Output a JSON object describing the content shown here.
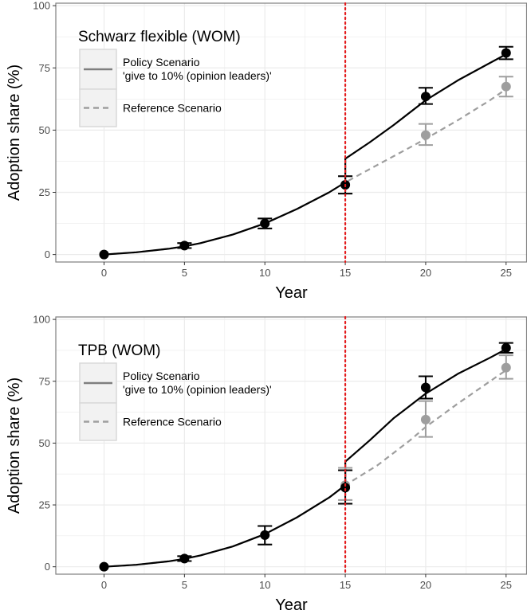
{
  "colors": {
    "policy": "#000000",
    "reference": "#9e9e9e",
    "policy_line": "#7f7f7f",
    "intervention": "#e41a1c",
    "grid": "#ebebeb",
    "panel_border": "#7f7f7f"
  },
  "chart_data": [
    {
      "type": "line",
      "title": "Schwarz flexible (WOM)",
      "xlabel": "Year",
      "ylabel": "Adoption share (%)",
      "xlim": [
        -3,
        26.3
      ],
      "ylim": [
        -3,
        101
      ],
      "x_ticks": [
        0,
        5,
        10,
        15,
        20,
        25
      ],
      "y_ticks": [
        0,
        25,
        50,
        75,
        100
      ],
      "grid": true,
      "legend_position": "top-left",
      "vline_x": 15,
      "legend": [
        {
          "series": "policy",
          "lines": [
            "Policy Scenario",
            "'give to 10% (opinion leaders)'"
          ],
          "style": "solid"
        },
        {
          "series": "reference",
          "lines": [
            "Reference Scenario"
          ],
          "style": "dashed"
        }
      ],
      "series": [
        {
          "key": "policy",
          "curve": [
            [
              0,
              0
            ],
            [
              2,
              0.9
            ],
            [
              4,
              2.3
            ],
            [
              5,
              3.3
            ],
            [
              6,
              4.6
            ],
            [
              8,
              8
            ],
            [
              10,
              12.5
            ],
            [
              12,
              18.3
            ],
            [
              14,
              25
            ],
            [
              15,
              29
            ],
            [
              15,
              38.5
            ],
            [
              16.5,
              45
            ],
            [
              18,
              52
            ],
            [
              20,
              62
            ],
            [
              22,
              70
            ],
            [
              24,
              77
            ],
            [
              25,
              80.5
            ]
          ],
          "points": [
            {
              "x": 0,
              "y": 0,
              "lo": 0,
              "hi": 0
            },
            {
              "x": 5,
              "y": 3.6,
              "lo": 2.6,
              "hi": 4.6
            },
            {
              "x": 10,
              "y": 12.5,
              "lo": 10.5,
              "hi": 14.5
            },
            {
              "x": 15,
              "y": 28,
              "lo": 24.5,
              "hi": 31.5
            },
            {
              "x": 20,
              "y": 63.5,
              "lo": 60.5,
              "hi": 67
            },
            {
              "x": 25,
              "y": 81,
              "lo": 78.5,
              "hi": 83.5
            }
          ]
        },
        {
          "key": "reference",
          "curve": [
            [
              0,
              0
            ],
            [
              2,
              0.9
            ],
            [
              4,
              2.3
            ],
            [
              5,
              3.3
            ],
            [
              6,
              4.6
            ],
            [
              8,
              8
            ],
            [
              10,
              12.5
            ],
            [
              12,
              18.3
            ],
            [
              14,
              25
            ],
            [
              15,
              29
            ],
            [
              17,
              36
            ],
            [
              19,
              43
            ],
            [
              20,
              46.5
            ],
            [
              22,
              54
            ],
            [
              24,
              62
            ],
            [
              25,
              66.5
            ]
          ],
          "points": [
            {
              "x": 0,
              "y": 0,
              "lo": 0,
              "hi": 0
            },
            {
              "x": 5,
              "y": 3.6,
              "lo": 2.6,
              "hi": 4.6
            },
            {
              "x": 10,
              "y": 12.5,
              "lo": 10.5,
              "hi": 14.5
            },
            {
              "x": 15,
              "y": 28,
              "lo": 24.5,
              "hi": 31.5
            },
            {
              "x": 20,
              "y": 48,
              "lo": 44,
              "hi": 52.5
            },
            {
              "x": 25,
              "y": 67.5,
              "lo": 63.5,
              "hi": 71.5
            }
          ]
        }
      ]
    },
    {
      "type": "line",
      "title": "TPB (WOM)",
      "xlabel": "Year",
      "ylabel": "Adoption share (%)",
      "xlim": [
        -3,
        26.3
      ],
      "ylim": [
        -3,
        101
      ],
      "x_ticks": [
        0,
        5,
        10,
        15,
        20,
        25
      ],
      "y_ticks": [
        0,
        25,
        50,
        75,
        100
      ],
      "grid": true,
      "legend_position": "top-left",
      "vline_x": 15,
      "legend": [
        {
          "series": "policy",
          "lines": [
            "Policy Scenario",
            "'give to 10% (opinion leaders)'"
          ],
          "style": "solid"
        },
        {
          "series": "reference",
          "lines": [
            "Reference Scenario"
          ],
          "style": "dashed"
        }
      ],
      "series": [
        {
          "key": "policy",
          "curve": [
            [
              0,
              0
            ],
            [
              2,
              0.8
            ],
            [
              4,
              2.2
            ],
            [
              5,
              3.2
            ],
            [
              6,
              4.6
            ],
            [
              8,
              8.2
            ],
            [
              10,
              13.2
            ],
            [
              12,
              20
            ],
            [
              14,
              28
            ],
            [
              15,
              33
            ],
            [
              15,
              42.5
            ],
            [
              16.5,
              51
            ],
            [
              18,
              60
            ],
            [
              20,
              70
            ],
            [
              22,
              78
            ],
            [
              24,
              84.5
            ],
            [
              25,
              88
            ]
          ],
          "points": [
            {
              "x": 0,
              "y": 0,
              "lo": 0,
              "hi": 0
            },
            {
              "x": 5,
              "y": 3.3,
              "lo": 2.3,
              "hi": 4.3
            },
            {
              "x": 10,
              "y": 12.8,
              "lo": 9,
              "hi": 16.5
            },
            {
              "x": 15,
              "y": 32,
              "lo": 25.5,
              "hi": 39
            },
            {
              "x": 20,
              "y": 72.5,
              "lo": 68,
              "hi": 77
            },
            {
              "x": 25,
              "y": 88.5,
              "lo": 86.5,
              "hi": 90.5
            }
          ]
        },
        {
          "key": "reference",
          "curve": [
            [
              0,
              0
            ],
            [
              2,
              0.8
            ],
            [
              4,
              2.2
            ],
            [
              5,
              3.2
            ],
            [
              6,
              4.6
            ],
            [
              8,
              8.2
            ],
            [
              10,
              13.2
            ],
            [
              12,
              20
            ],
            [
              14,
              28
            ],
            [
              15,
              33
            ],
            [
              17,
              41
            ],
            [
              19,
              51
            ],
            [
              20,
              56.5
            ],
            [
              22,
              66
            ],
            [
              24,
              75
            ],
            [
              25,
              79.5
            ]
          ],
          "points": [
            {
              "x": 0,
              "y": 0,
              "lo": 0,
              "hi": 0
            },
            {
              "x": 5,
              "y": 3.3,
              "lo": 2.3,
              "hi": 4.3
            },
            {
              "x": 10,
              "y": 12.8,
              "lo": 9,
              "hi": 16.5
            },
            {
              "x": 15,
              "y": 33,
              "lo": 27,
              "hi": 40
            },
            {
              "x": 20,
              "y": 59.5,
              "lo": 52.5,
              "hi": 67
            },
            {
              "x": 25,
              "y": 80.5,
              "lo": 76,
              "hi": 85.5
            }
          ]
        }
      ]
    }
  ]
}
